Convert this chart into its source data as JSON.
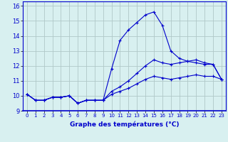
{
  "xlabel": "Graphe des températures (°C)",
  "bg_color": "#d8f0f0",
  "line_color": "#0000cc",
  "grid_color": "#b0c8c8",
  "xlim": [
    -0.5,
    23.5
  ],
  "ylim": [
    9.0,
    16.3
  ],
  "yticks": [
    9,
    10,
    11,
    12,
    13,
    14,
    15,
    16
  ],
  "xticks": [
    0,
    1,
    2,
    3,
    4,
    5,
    6,
    7,
    8,
    9,
    10,
    11,
    12,
    13,
    14,
    15,
    16,
    17,
    18,
    19,
    20,
    21,
    22,
    23
  ],
  "series1": [
    10.1,
    9.7,
    9.7,
    9.9,
    9.9,
    10.0,
    9.5,
    9.7,
    9.7,
    9.7,
    11.8,
    13.7,
    14.4,
    14.9,
    15.4,
    15.6,
    14.7,
    13.0,
    12.5,
    12.3,
    12.2,
    12.1,
    12.1,
    11.1
  ],
  "series2": [
    10.1,
    9.7,
    9.7,
    9.9,
    9.9,
    10.0,
    9.5,
    9.7,
    9.7,
    9.7,
    10.3,
    10.6,
    11.0,
    11.5,
    12.0,
    12.4,
    12.2,
    12.1,
    12.2,
    12.3,
    12.4,
    12.2,
    12.1,
    11.1
  ],
  "series3": [
    10.1,
    9.7,
    9.7,
    9.9,
    9.9,
    10.0,
    9.5,
    9.7,
    9.7,
    9.7,
    10.1,
    10.3,
    10.5,
    10.8,
    11.1,
    11.3,
    11.2,
    11.1,
    11.2,
    11.3,
    11.4,
    11.3,
    11.3,
    11.1
  ]
}
